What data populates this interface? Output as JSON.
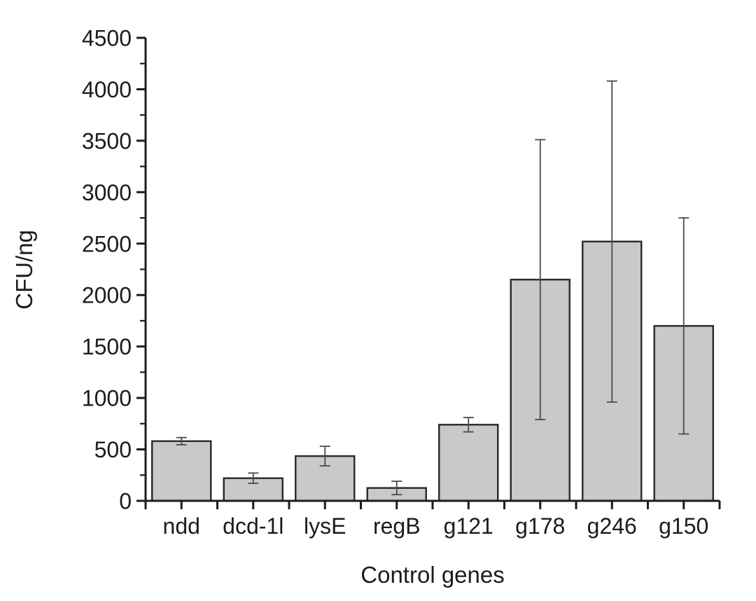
{
  "chart_data": {
    "type": "bar",
    "title": "",
    "xlabel": "Control genes",
    "ylabel": "CFU/ng",
    "categories": [
      "ndd",
      "dcd-1l",
      "lysE",
      "regB",
      "g121",
      "g178",
      "g246",
      "g150"
    ],
    "values": [
      580,
      220,
      435,
      125,
      740,
      2150,
      2520,
      1700
    ],
    "errors": [
      35,
      50,
      95,
      65,
      70,
      1360,
      1560,
      1050
    ],
    "ylim": [
      0,
      4500
    ],
    "ytick_step": 500,
    "yminor_step": 250,
    "ytick_labels": [
      "0",
      "500",
      "1000",
      "1500",
      "2000",
      "2500",
      "3000",
      "3500",
      "4000",
      "4500"
    ],
    "grid": false,
    "legend": null,
    "bar_fill": "#c9c9c9",
    "bar_stroke": "#2e2e2e",
    "error_color": "#4a4a4a",
    "axis_color": "#1c1c1c",
    "background": "#ffffff"
  }
}
